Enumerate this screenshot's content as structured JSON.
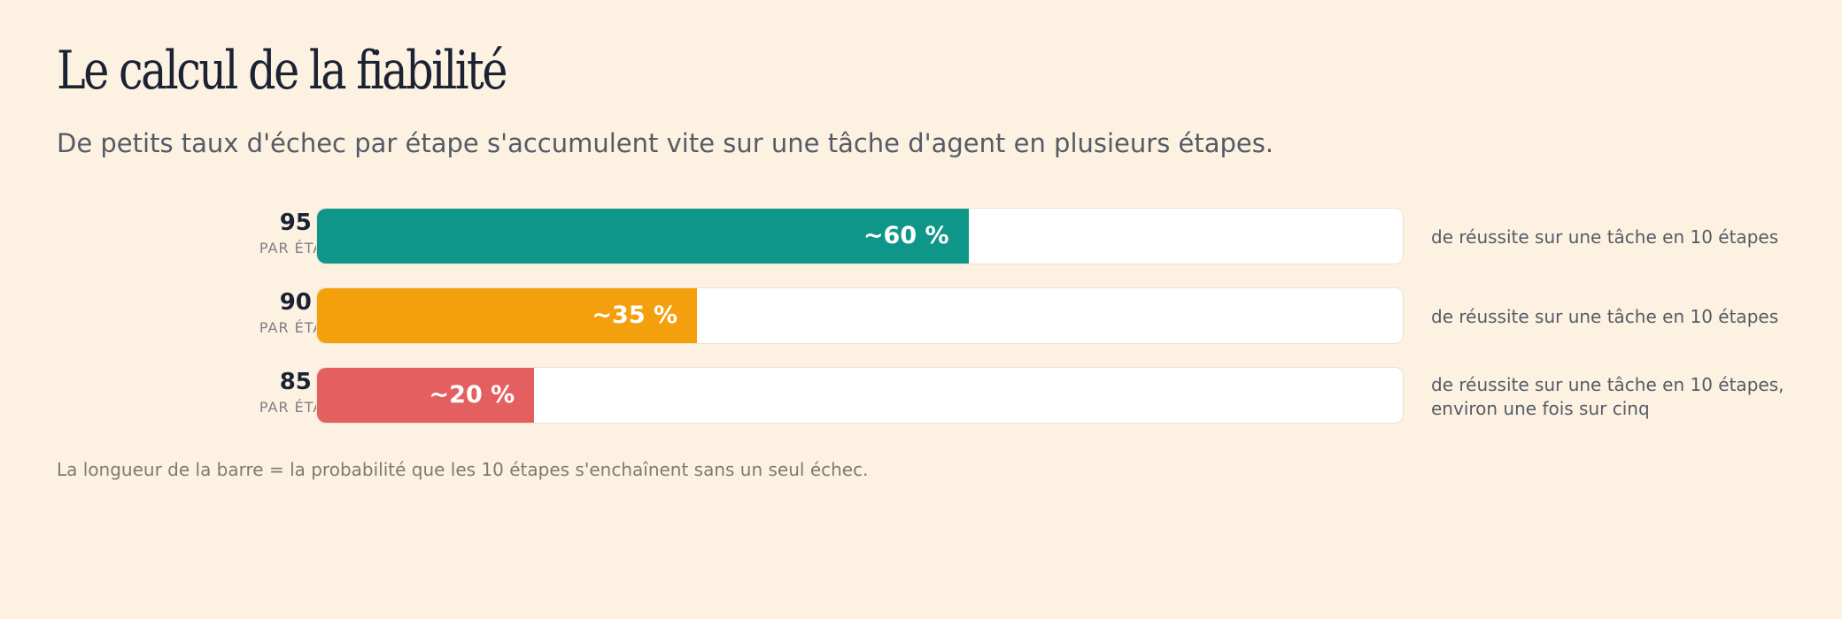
{
  "header": {
    "title": "Le calcul de la fiabilité",
    "subtitle": "De petits taux d'échec par étape s'accumulent vite sur une tâche d'agent en plusieurs étapes."
  },
  "chart_data": {
    "type": "bar",
    "orientation": "horizontal",
    "xlim": [
      0,
      1
    ],
    "rows": [
      {
        "rate": "95 %",
        "rate_sub": "PAR ÉTAPE",
        "value": 0.6,
        "value_label": "~60 %",
        "note": "de réussite sur une tâche en 10 étapes",
        "color": "#0e9688"
      },
      {
        "rate": "90 %",
        "rate_sub": "PAR ÉTAPE",
        "value": 0.35,
        "value_label": "~35 %",
        "note": "de réussite sur une tâche en 10 étapes",
        "color": "#f4a00c"
      },
      {
        "rate": "85 %",
        "rate_sub": "PAR ÉTAPE",
        "value": 0.2,
        "value_label": "~20 %",
        "note": "de réussite sur une tâche en 10 étapes, environ une fois sur cinq",
        "color": "#e45f5f"
      }
    ]
  },
  "footnote": "La longueur de la barre = la probabilité que les 10 étapes s'enchaînent sans un seul échec."
}
